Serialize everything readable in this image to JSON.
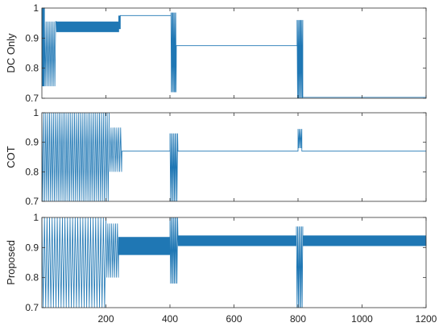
{
  "chart_data": [
    {
      "type": "line",
      "ylabel": "DC Only",
      "xlim": [
        0,
        1200
      ],
      "ylim": [
        0.7,
        1.0
      ],
      "yticks": [
        0.7,
        0.8,
        0.9,
        1
      ],
      "ytick_labels": [
        "0.7",
        "0.8",
        "0.9",
        "1"
      ],
      "grid": false,
      "color": "#1f77b4",
      "series": [
        {
          "segments": [
            {
              "x": [
                0,
                8
              ],
              "pattern": "alternate",
              "levels": [
                1.0,
                0.74
              ],
              "period": 1
            },
            {
              "x": [
                8,
                45
              ],
              "pattern": "alternate",
              "levels": [
                0.955,
                0.74
              ],
              "period": 2.5
            },
            {
              "x": [
                45,
                240
              ],
              "pattern": "alternate",
              "levels": [
                0.955,
                0.92
              ],
              "period": 1
            },
            {
              "x": [
                240,
                245
              ],
              "pattern": "alternate",
              "levels": [
                0.975,
                0.93
              ],
              "period": 1
            },
            {
              "x": [
                245,
                403
              ],
              "pattern": "constant",
              "level": 0.975
            },
            {
              "x": [
                403,
                420
              ],
              "pattern": "alternate",
              "levels": [
                0.985,
                0.72
              ],
              "period": 1.5
            },
            {
              "x": [
                420,
                797
              ],
              "pattern": "constant",
              "level": 0.875
            },
            {
              "x": [
                797,
                815
              ],
              "pattern": "alternate",
              "levels": [
                0.96,
                0.7
              ],
              "period": 1.5
            },
            {
              "x": [
                815,
                1200
              ],
              "pattern": "constant",
              "level": 0.703
            }
          ]
        }
      ]
    },
    {
      "type": "line",
      "ylabel": "COT",
      "xlim": [
        0,
        1200
      ],
      "ylim": [
        0.7,
        1.0
      ],
      "yticks": [
        0.7,
        0.8,
        0.9,
        1
      ],
      "ytick_labels": [
        "0.7",
        "0.8",
        "0.9",
        "1"
      ],
      "grid": false,
      "color": "#1f77b4",
      "series": [
        {
          "segments": [
            {
              "x": [
                0,
                210
              ],
              "pattern": "alternate",
              "levels": [
                1.0,
                0.7
              ],
              "period": 3
            },
            {
              "x": [
                210,
                250
              ],
              "pattern": "alternate",
              "levels": [
                0.95,
                0.8
              ],
              "period": 3
            },
            {
              "x": [
                250,
                400
              ],
              "pattern": "constant",
              "level": 0.87
            },
            {
              "x": [
                400,
                425
              ],
              "pattern": "alternate",
              "levels": [
                0.93,
                0.7
              ],
              "period": 2
            },
            {
              "x": [
                425,
                800
              ],
              "pattern": "constant",
              "level": 0.87
            },
            {
              "x": [
                800,
                812
              ],
              "pattern": "alternate",
              "levels": [
                0.945,
                0.88
              ],
              "period": 2
            },
            {
              "x": [
                812,
                1200
              ],
              "pattern": "constant",
              "level": 0.87
            }
          ]
        }
      ]
    },
    {
      "type": "line",
      "ylabel": "Proposed",
      "xlim": [
        0,
        1200
      ],
      "ylim": [
        0.7,
        1.0
      ],
      "yticks": [
        0.7,
        0.8,
        0.9,
        1
      ],
      "ytick_labels": [
        "0.7",
        "0.8",
        "0.9",
        "1"
      ],
      "xticks": [
        200,
        400,
        600,
        800,
        1000,
        1200
      ],
      "xtick_labels": [
        "200",
        "400",
        "600",
        "800",
        "1000",
        "1200"
      ],
      "grid": false,
      "color": "#1f77b4",
      "series": [
        {
          "segments": [
            {
              "x": [
                0,
                200
              ],
              "pattern": "alternate",
              "levels": [
                1.0,
                0.7
              ],
              "period": 4
            },
            {
              "x": [
                200,
                240
              ],
              "pattern": "alternate",
              "levels": [
                0.98,
                0.8
              ],
              "period": 3
            },
            {
              "x": [
                240,
                400
              ],
              "pattern": "alternate",
              "levels": [
                0.935,
                0.875
              ],
              "period": 1
            },
            {
              "x": [
                400,
                425
              ],
              "pattern": "alternate",
              "levels": [
                1.0,
                0.78
              ],
              "period": 2
            },
            {
              "x": [
                425,
                795
              ],
              "pattern": "alternate",
              "levels": [
                0.94,
                0.905
              ],
              "period": 1
            },
            {
              "x": [
                795,
                815
              ],
              "pattern": "alternate",
              "levels": [
                0.97,
                0.7
              ],
              "period": 2
            },
            {
              "x": [
                815,
                1200
              ],
              "pattern": "alternate",
              "levels": [
                0.94,
                0.905
              ],
              "period": 1
            }
          ]
        }
      ]
    }
  ]
}
